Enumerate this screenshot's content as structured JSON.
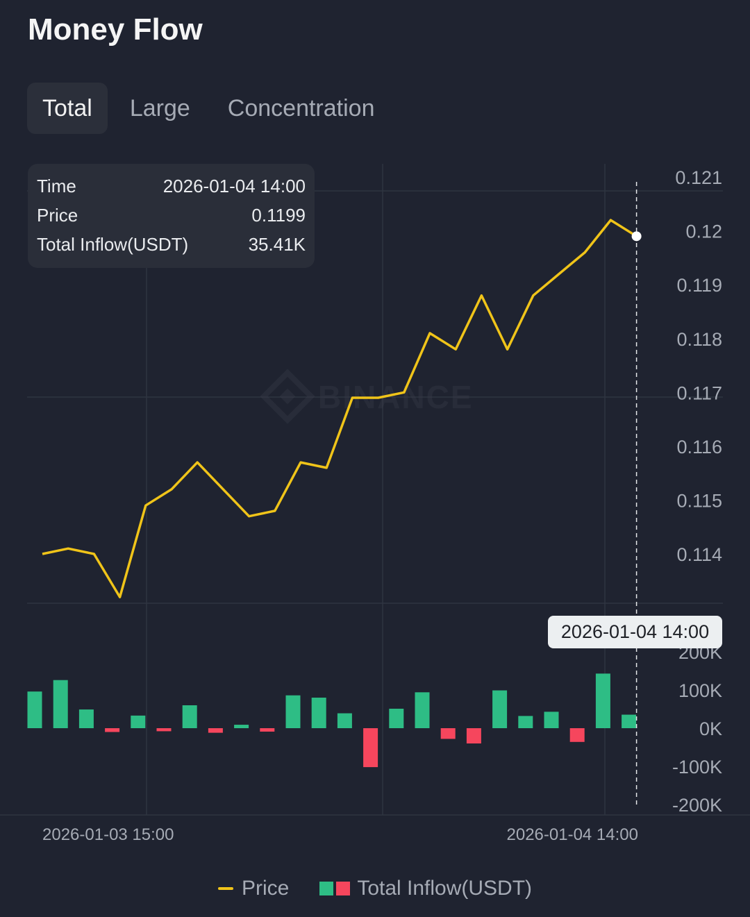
{
  "title": "Money Flow",
  "tabs": [
    {
      "label": "Total",
      "active": true
    },
    {
      "label": "Large",
      "active": false
    },
    {
      "label": "Concentration",
      "active": false
    }
  ],
  "tooltip": {
    "rows": [
      {
        "label": "Time",
        "value": "2026-01-04 14:00"
      },
      {
        "label": "Price",
        "value": "0.1199"
      },
      {
        "label": "Total Inflow(USDT)",
        "value": "35.41K"
      }
    ]
  },
  "crosshair_label": "2026-01-04 14:00",
  "watermark": "BINANCE",
  "legend": {
    "price": "Price",
    "inflow": "Total Inflow(USDT)"
  },
  "colors": {
    "price": "#f0c419",
    "inflow_positive": "#2ebd85",
    "inflow_negative": "#f6465d",
    "background": "#1f2330"
  },
  "chart_data": {
    "type": "line+bar",
    "x_ticks": [
      "2026-01-03 15:00",
      "2026-01-04 14:00"
    ],
    "price": {
      "name": "Price",
      "values": [
        0.114,
        0.1141,
        0.114,
        0.1132,
        0.1149,
        0.1152,
        0.1157,
        0.1152,
        0.1147,
        0.1148,
        0.1157,
        0.1156,
        0.1169,
        0.1169,
        0.117,
        0.1181,
        0.1178,
        0.1188,
        0.1178,
        0.1188,
        0.1192,
        0.1196,
        0.1202,
        0.1199
      ],
      "y_ticks": [
        "0.121",
        "0.12",
        "0.119",
        "0.118",
        "0.117",
        "0.116",
        "0.115",
        "0.114"
      ],
      "ylim": [
        0.1132,
        0.1213
      ]
    },
    "inflow": {
      "name": "Total Inflow(USDT)",
      "values": [
        96000,
        126000,
        49000,
        -10000,
        33000,
        -8000,
        60000,
        -12000,
        9000,
        -9000,
        86000,
        80000,
        39000,
        -102000,
        51000,
        94000,
        -28000,
        -40000,
        99000,
        32000,
        43000,
        -36000,
        143000,
        35410
      ],
      "y_ticks": [
        "200K",
        "100K",
        "0K",
        "-100K",
        "-200K"
      ],
      "ylim": [
        -200000,
        200000
      ]
    }
  }
}
